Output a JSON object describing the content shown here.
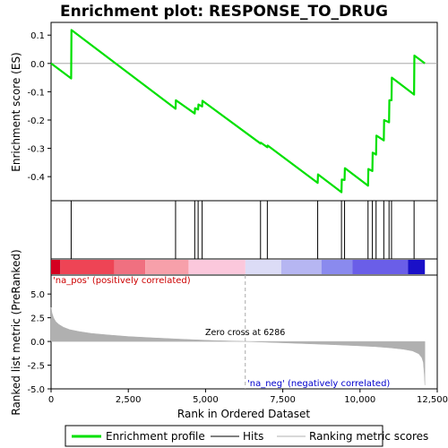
{
  "chart_data": {
    "type": "line",
    "title": "Enrichment plot: RESPONSE_TO_DRUG",
    "xlabel": "Rank in Ordered Dataset",
    "es_panel": {
      "ylabel": "Enrichment score (ES)",
      "ylim": [
        -0.485,
        0.145
      ],
      "yticks": [
        0.1,
        0.0,
        -0.1,
        -0.2,
        -0.3,
        -0.4
      ],
      "ytick_labels": [
        "0.1",
        "0.0",
        "-0.1",
        "-0.2",
        "-0.3",
        "-0.4"
      ],
      "series": [
        {
          "name": "Enrichment profile",
          "color": "#00e000",
          "x": [
            0,
            650,
            660,
            4030,
            4040,
            4650,
            4660,
            4760,
            4770,
            4890,
            4900,
            6780,
            6790,
            7000,
            7010,
            8630,
            8640,
            9400,
            9410,
            9500,
            9510,
            10260,
            10270,
            10400,
            10410,
            10520,
            10530,
            10770,
            10780,
            10940,
            10950,
            11020,
            11030,
            11750,
            11760,
            12100
          ],
          "y": [
            0.0,
            -0.053,
            0.118,
            -0.16,
            -0.13,
            -0.177,
            -0.158,
            -0.163,
            -0.145,
            -0.152,
            -0.132,
            -0.283,
            -0.28,
            -0.296,
            -0.29,
            -0.422,
            -0.392,
            -0.455,
            -0.41,
            -0.412,
            -0.37,
            -0.432,
            -0.373,
            -0.38,
            -0.315,
            -0.322,
            -0.255,
            -0.272,
            -0.2,
            -0.208,
            -0.13,
            -0.13,
            -0.05,
            -0.11,
            0.028,
            0.0
          ]
        }
      ]
    },
    "hits": {
      "label": "Hits",
      "color": "#000000",
      "x": [
        650,
        4030,
        4650,
        4760,
        4890,
        6780,
        7000,
        8630,
        9400,
        9500,
        10260,
        10400,
        10520,
        10770,
        10940,
        11020,
        11750
      ]
    },
    "rank_panel": {
      "ylabel": "Ranked list metric (PreRanked)",
      "ylim": [
        -5.0,
        7.0
      ],
      "yticks": [
        5.0,
        2.5,
        0.0,
        -2.5,
        -5.0
      ],
      "ytick_labels": [
        "5.0",
        "2.5",
        "0.0",
        "-2.5",
        "-5.0"
      ],
      "series": [
        {
          "name": "Ranking metric scores",
          "color": "#b0b0b0",
          "x": [
            0,
            30,
            80,
            150,
            250,
            400,
            600,
            900,
            1300,
            1800,
            2500,
            3300,
            4200,
            5200,
            6286,
            7300,
            8300,
            9200,
            9900,
            10500,
            11000,
            11400,
            11700,
            11900,
            12000,
            12050,
            12080,
            12100
          ],
          "y": [
            3.6,
            3.0,
            2.5,
            2.1,
            1.8,
            1.5,
            1.25,
            1.05,
            0.85,
            0.7,
            0.52,
            0.38,
            0.24,
            0.1,
            0.0,
            -0.12,
            -0.24,
            -0.35,
            -0.45,
            -0.55,
            -0.68,
            -0.82,
            -1.0,
            -1.3,
            -1.7,
            -2.2,
            -3.4,
            -4.6
          ]
        }
      ]
    },
    "xlim": [
      0,
      12500
    ],
    "xticks": [
      0,
      2500,
      5000,
      7500,
      10000,
      12500
    ],
    "xtick_labels": [
      "0",
      "2,500",
      "5,000",
      "7,500",
      "10,000",
      "12,500"
    ],
    "data_max_rank": 12100,
    "zero_cross": {
      "rank": 6286,
      "label": "Zero cross at 6286"
    },
    "annotations": {
      "pos": {
        "text": "'na_pos' (positively correlated)",
        "color": "#cc0000"
      },
      "neg": {
        "text": "'na_neg' (negatively correlated)",
        "color": "#0000cc"
      }
    },
    "color_bar": {
      "segments": [
        {
          "from": 0,
          "to": 300,
          "color": "#d40020"
        },
        {
          "from": 300,
          "to": 2050,
          "color": "#ee4455"
        },
        {
          "from": 2050,
          "to": 3050,
          "color": "#f07080"
        },
        {
          "from": 3050,
          "to": 4450,
          "color": "#f7a0aa"
        },
        {
          "from": 4450,
          "to": 6290,
          "color": "#fbc8dc"
        },
        {
          "from": 6290,
          "to": 7450,
          "color": "#dcdcf6"
        },
        {
          "from": 7450,
          "to": 8750,
          "color": "#b6b6f2"
        },
        {
          "from": 8750,
          "to": 9750,
          "color": "#8a8aee"
        },
        {
          "from": 9750,
          "to": 11550,
          "color": "#6a5ee8"
        },
        {
          "from": 11550,
          "to": 12100,
          "color": "#1a10c8"
        }
      ]
    },
    "legend": {
      "placement": "bottom",
      "items": [
        {
          "label": "Enrichment profile",
          "color": "#00e000",
          "style": "thick"
        },
        {
          "label": "Hits",
          "color": "#000000",
          "style": "thin"
        },
        {
          "label": "Ranking metric scores",
          "color": "#b0b0b0",
          "style": "thin"
        }
      ]
    }
  }
}
